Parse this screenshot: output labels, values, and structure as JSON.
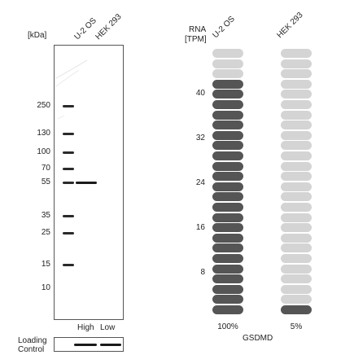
{
  "western_blot": {
    "unit_label": "[kDa]",
    "lanes": [
      "U-2 OS",
      "HEK 293"
    ],
    "markers": [
      "250",
      "130",
      "100",
      "70",
      "55",
      "35",
      "25",
      "15",
      "10"
    ],
    "intensity_labels": {
      "high": "High",
      "low": "Low"
    },
    "loading_control": {
      "line1": "Loading",
      "line2": "Control"
    }
  },
  "rna": {
    "axis_label": {
      "line1": "RNA",
      "line2": "[TPM]"
    },
    "scale_ticks": [
      "40",
      "32",
      "24",
      "16",
      "8"
    ],
    "samples": [
      {
        "name": "U-2 OS",
        "percent": "100%",
        "filled_bars": 23,
        "total_bars": 26
      },
      {
        "name": "HEK 293",
        "percent": "5%",
        "filled_bars": 1,
        "total_bars": 26
      }
    ],
    "gene": "GSDMD"
  },
  "colors": {
    "bar_filled": "#555555",
    "bar_empty": "#d4d4d4",
    "band": "#1a1a1a"
  }
}
